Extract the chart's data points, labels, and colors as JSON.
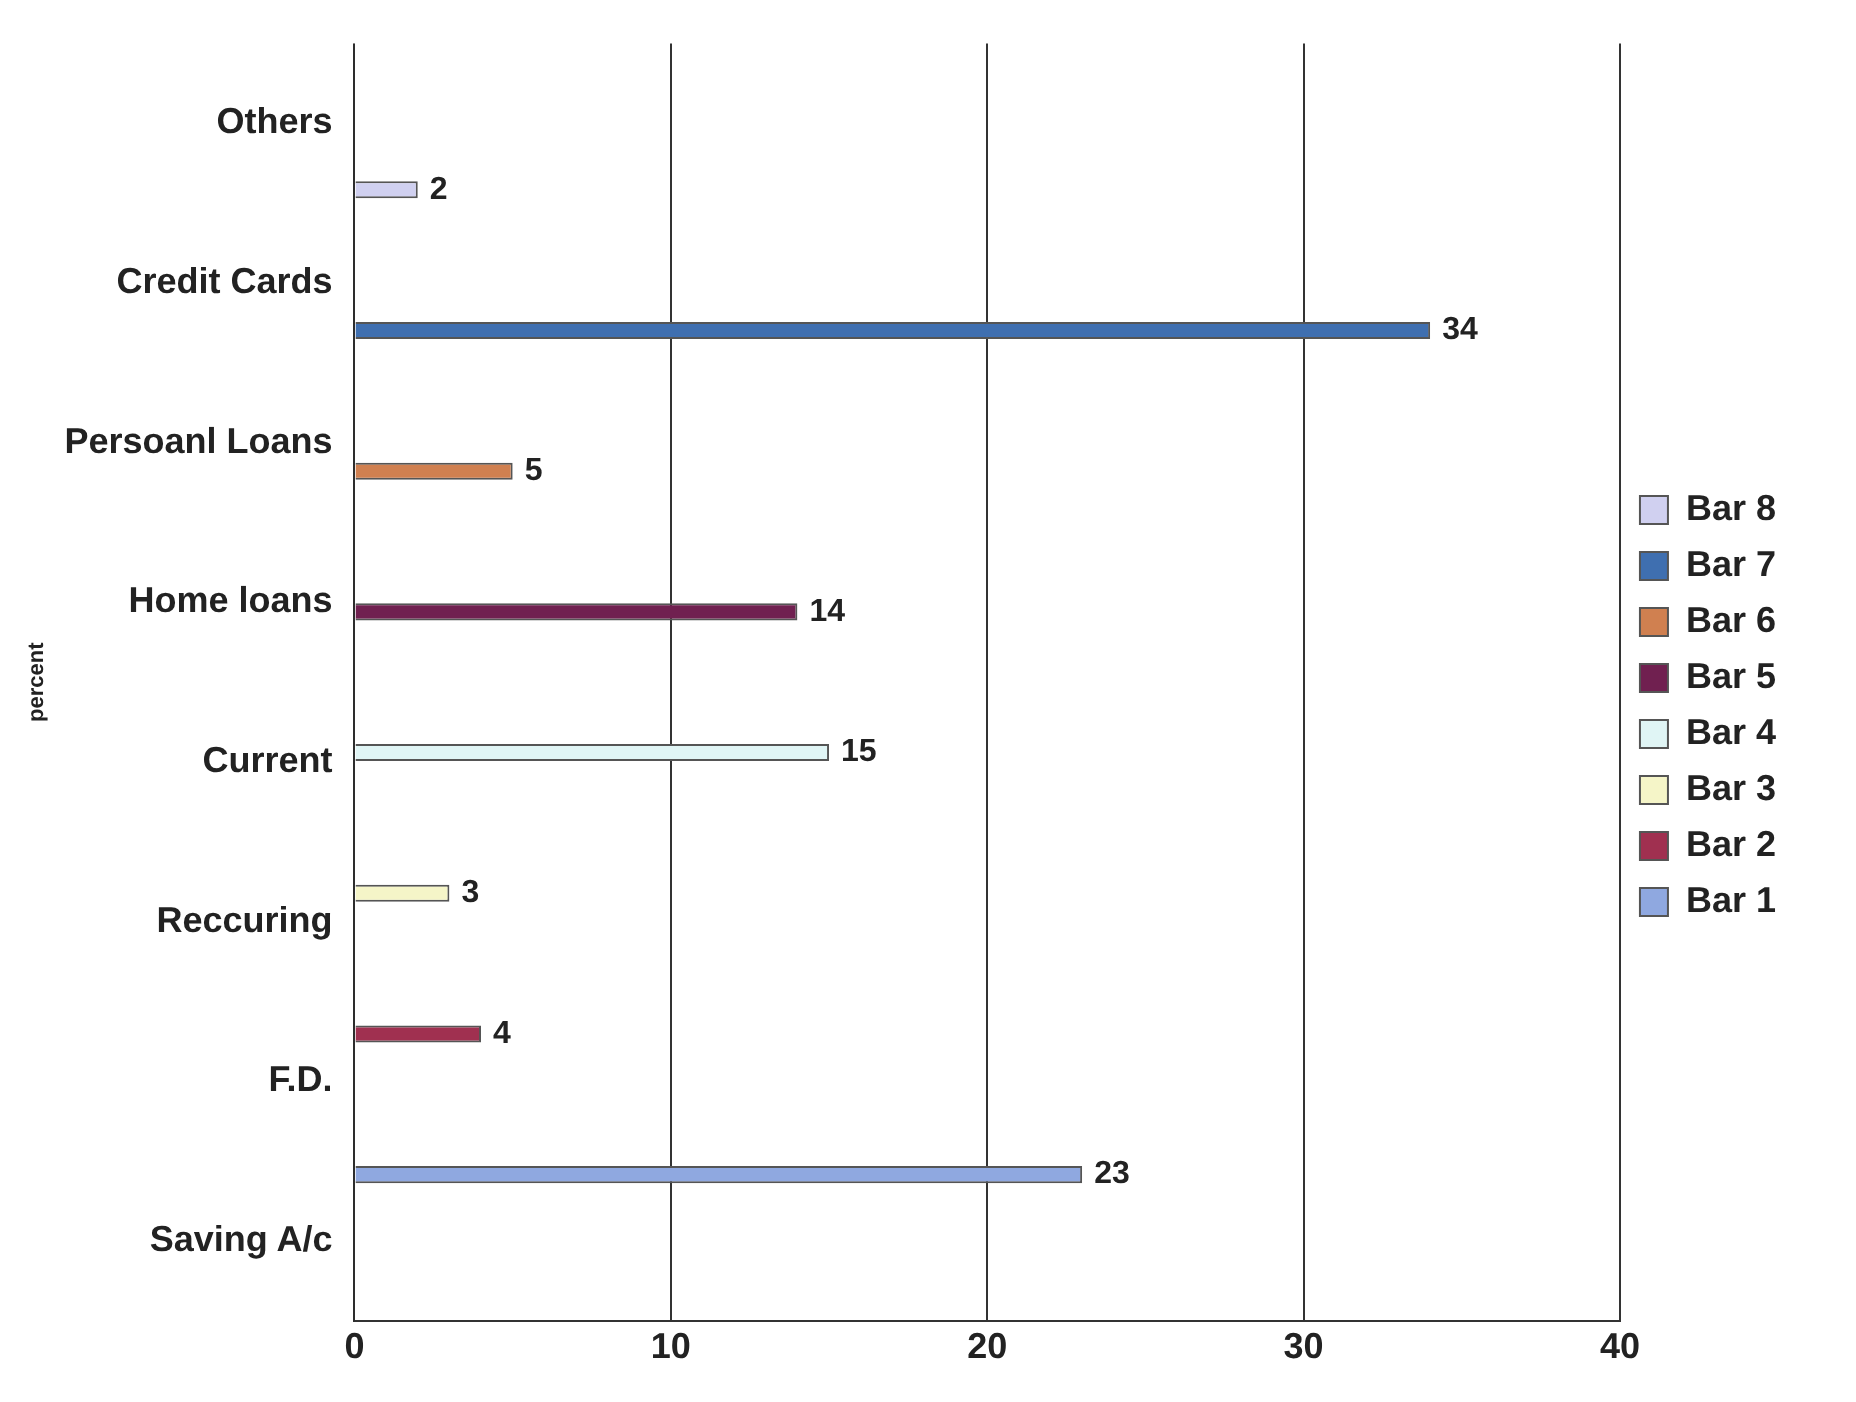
{
  "chart_data": {
    "type": "bar",
    "orientation": "horizontal",
    "ylabel": "percent",
    "categories": [
      "Others",
      "Credit Cards",
      "Persoanl Loans",
      "Home loans",
      "Current",
      "Reccuring",
      "F.D.",
      "Saving A/c"
    ],
    "series": [
      {
        "name": "Bar 1",
        "color": "#8fa8e0",
        "values": [
          null,
          null,
          null,
          null,
          null,
          null,
          null,
          23
        ]
      },
      {
        "name": "Bar 2",
        "color": "#a03050",
        "values": [
          null,
          null,
          null,
          null,
          null,
          null,
          4,
          null
        ]
      },
      {
        "name": "Bar 3",
        "color": "#f5f5c8",
        "values": [
          null,
          null,
          null,
          null,
          null,
          3,
          null,
          null
        ]
      },
      {
        "name": "Bar 4",
        "color": "#e0f5f5",
        "values": [
          null,
          null,
          null,
          null,
          15,
          null,
          null,
          null
        ]
      },
      {
        "name": "Bar 5",
        "color": "#702050",
        "values": [
          null,
          null,
          null,
          14,
          null,
          null,
          null,
          null
        ]
      },
      {
        "name": "Bar 6",
        "color": "#d08050",
        "values": [
          null,
          null,
          5,
          null,
          null,
          null,
          null,
          null
        ]
      },
      {
        "name": "Bar 7",
        "color": "#3f6fb0",
        "values": [
          null,
          34,
          null,
          null,
          null,
          null,
          null,
          null
        ]
      },
      {
        "name": "Bar 8",
        "color": "#d0d0f0",
        "values": [
          2,
          null,
          null,
          null,
          null,
          null,
          null,
          null
        ]
      }
    ],
    "xlim": [
      0,
      40
    ],
    "xticks": [
      0,
      10,
      20,
      30,
      40
    ],
    "grid": "x",
    "legend": "right",
    "data_labels": true
  }
}
